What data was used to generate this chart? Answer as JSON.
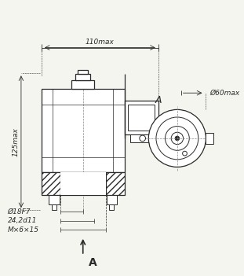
{
  "bg_color": "#f5f5f0",
  "line_color": "#2a2a2a",
  "hatch_color": "#2a2a2a",
  "dim_color": "#2a2a2a",
  "title_text": "",
  "labels": {
    "width_dim": "110max",
    "height_dim": "125max",
    "d1": "Ø18F7",
    "d2": "24,2d11",
    "d3": "M×6×15",
    "d_right": "Ø60max",
    "view_label": "A",
    "view_arrow": "A"
  },
  "font_size": 6.5,
  "font_size_label": 9
}
